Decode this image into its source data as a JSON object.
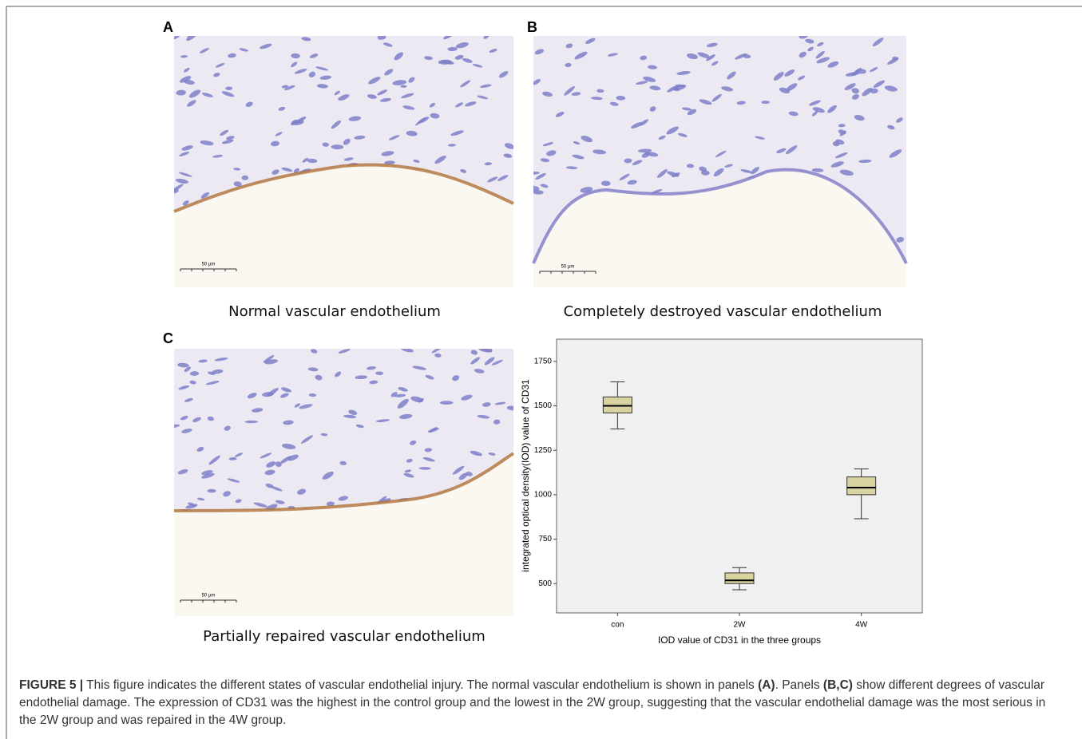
{
  "panels": [
    {
      "label": "A",
      "caption": "Normal vascular endothelium",
      "scale": "50 µm"
    },
    {
      "label": "B",
      "caption": "Completely destroyed vascular endothelium",
      "scale": "50 µm"
    },
    {
      "label": "C",
      "caption": "Partially repaired vascular endothelium",
      "scale": "50 µm"
    }
  ],
  "chart_data": {
    "type": "box",
    "x_label": "IOD value of CD31 in the three groups",
    "y_label": "integrated optical density(IOD) value of CD31",
    "categories": [
      "con",
      "2W",
      "4W"
    ],
    "min": [
      1370,
      465,
      865
    ],
    "q1": [
      1460,
      500,
      1000
    ],
    "median": [
      1500,
      518,
      1040
    ],
    "q3": [
      1550,
      560,
      1100
    ],
    "max": [
      1635,
      590,
      1145
    ],
    "color": "#d9d3a1",
    "ylim": [
      335,
      1875
    ],
    "yticks": [
      500,
      750,
      1000,
      1250,
      1500,
      1750
    ]
  },
  "caption": {
    "label": "FIGURE 5 |",
    "parts": [
      " This figure indicates the different states of vascular endothelial injury. The normal vascular endothelium is shown in panels ",
      "(A)",
      ". Panels ",
      "(B,C)",
      " show different degrees of vascular endothelial damage. The expression of CD31 was the highest in the control group and the lowest in the 2W group, suggesting that the vascular endothelial damage was the most serious in the 2W group and was repaired in the 4W group."
    ]
  }
}
